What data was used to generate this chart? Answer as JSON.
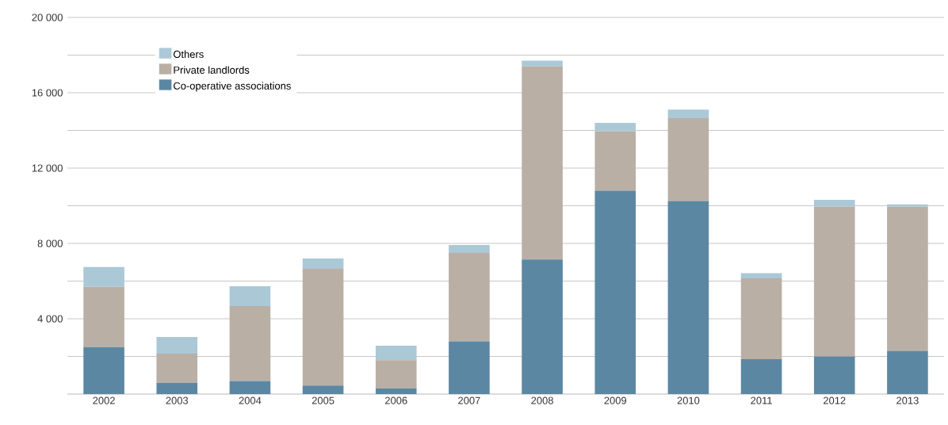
{
  "chart_data": {
    "type": "bar",
    "stacked": true,
    "categories": [
      "2002",
      "2003",
      "2004",
      "2005",
      "2006",
      "2007",
      "2008",
      "2009",
      "2010",
      "2011",
      "2012",
      "2013"
    ],
    "series": [
      {
        "name": "Co-operative associations",
        "color": "#5b87a3",
        "values": [
          2500,
          600,
          700,
          450,
          300,
          2800,
          7150,
          10800,
          10250,
          1850,
          2000,
          2300
        ]
      },
      {
        "name": "Private landlords",
        "color": "#b9afa5",
        "values": [
          3200,
          1550,
          3970,
          6200,
          1500,
          4700,
          10250,
          3150,
          4400,
          4300,
          7950,
          7650
        ]
      },
      {
        "name": "Others",
        "color": "#abc8d7",
        "values": [
          1050,
          880,
          1060,
          550,
          770,
          420,
          300,
          450,
          450,
          270,
          370,
          120
        ]
      }
    ],
    "ylim": [
      0,
      20000
    ],
    "yticks": [
      {
        "value": 2000,
        "label": null
      },
      {
        "value": 4000,
        "label": "4 000"
      },
      {
        "value": 6000,
        "label": null
      },
      {
        "value": 8000,
        "label": "8 000"
      },
      {
        "value": 10000,
        "label": null
      },
      {
        "value": 12000,
        "label": "12 000"
      },
      {
        "value": 14000,
        "label": null
      },
      {
        "value": 16000,
        "label": "16 000"
      },
      {
        "value": 18000,
        "label": null
      },
      {
        "value": 20000,
        "label": "20 000"
      }
    ],
    "grid": "y",
    "legend": "top left"
  }
}
